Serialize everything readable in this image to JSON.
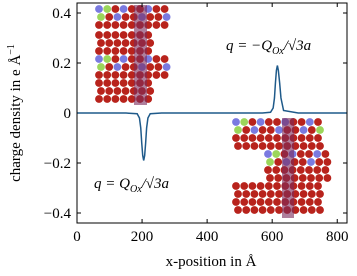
{
  "chart_data": {
    "type": "line",
    "x_label": "x-position in Å",
    "y_label": {
      "text": "charge density in e Å",
      "sup": "−1"
    },
    "annotations": [
      {
        "main": "q = −Q",
        "sub": "Ox",
        "rest": "/√3a"
      },
      {
        "main": "q = Q",
        "sub": "Ox",
        "rest": "/√3a"
      }
    ],
    "color": "#1f5a8a",
    "x": [
      0,
      150,
      185,
      192,
      196,
      199,
      202,
      205,
      208,
      211,
      214,
      218,
      225,
      260,
      570,
      595,
      603,
      607,
      610,
      613,
      616,
      619,
      623,
      627,
      635,
      680,
      830
    ],
    "values": [
      0,
      0,
      -0.003,
      -0.02,
      -0.06,
      -0.12,
      -0.17,
      -0.19,
      -0.17,
      -0.12,
      -0.06,
      -0.02,
      -0.003,
      0,
      0,
      0.003,
      0.02,
      0.06,
      0.12,
      0.17,
      0.19,
      0.17,
      0.12,
      0.06,
      0.01,
      0,
      0
    ],
    "xlim": [
      0,
      830
    ],
    "xticks": [
      0,
      200,
      400,
      600,
      800
    ],
    "ylim": [
      -0.44,
      0.44
    ],
    "yticks": [
      {
        "value": -0.4,
        "label": "−0.4"
      },
      {
        "value": -0.2,
        "label": "−0.2"
      },
      0,
      0.2,
      0.4
    ]
  }
}
